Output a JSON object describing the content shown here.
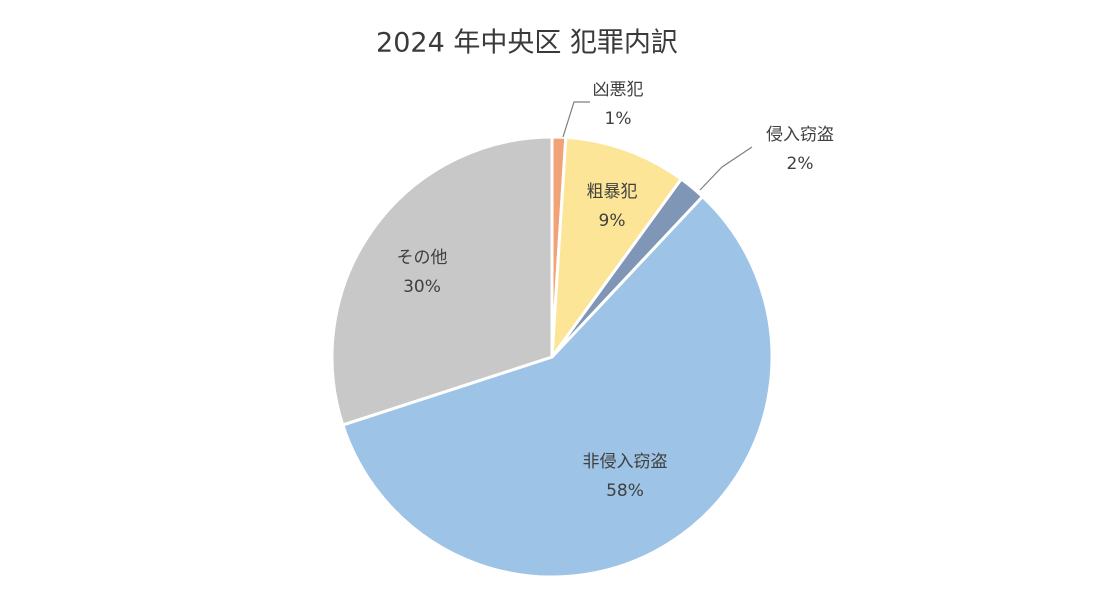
{
  "chart_data": {
    "type": "pie",
    "title": "2024 年中央区 犯罪内訳",
    "categories": [
      "凶悪犯",
      "粗暴犯",
      "侵入窃盗",
      "非侵入窃盗",
      "その他"
    ],
    "values": [
      1,
      9,
      2,
      58,
      30
    ],
    "value_labels": [
      "1%",
      "9%",
      "2%",
      "58%",
      "30%"
    ],
    "colors": [
      "#f2a277",
      "#fde597",
      "#8096b6",
      "#9dc3e6",
      "#c8c8c8"
    ]
  }
}
